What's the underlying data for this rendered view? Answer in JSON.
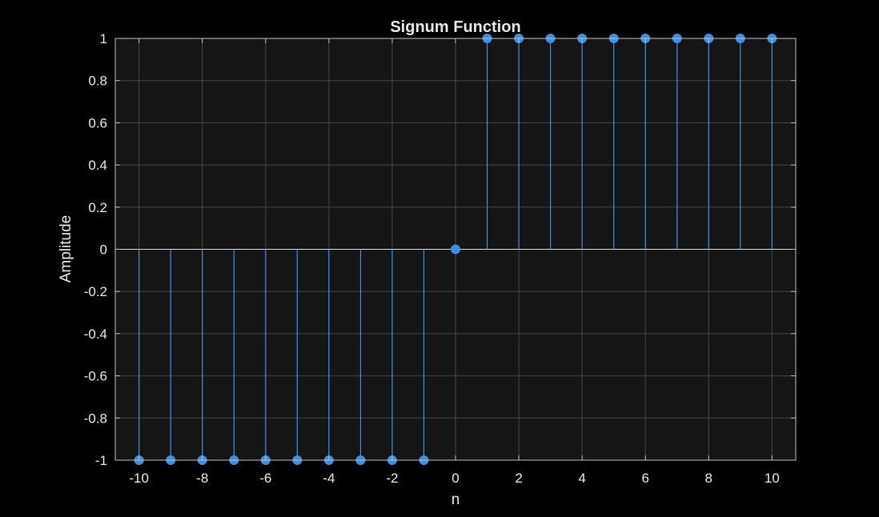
{
  "chart_data": {
    "type": "stem",
    "title": "Signum Function",
    "xlabel": "n",
    "ylabel": "Amplitude",
    "xlim": [
      -10.75,
      10.75
    ],
    "ylim": [
      -1,
      1
    ],
    "xticks": [
      "-10",
      "-8",
      "-6",
      "-4",
      "-2",
      "0",
      "2",
      "4",
      "6",
      "8",
      "10"
    ],
    "yticks": [
      "-1",
      "-0.8",
      "-0.6",
      "-0.4",
      "-0.2",
      "0",
      "0.2",
      "0.4",
      "0.6",
      "0.8",
      "1"
    ],
    "grid": true,
    "series": [
      {
        "x": [
          -10,
          -9,
          -8,
          -7,
          -6,
          -5,
          -4,
          -3,
          -2,
          -1,
          0,
          1,
          2,
          3,
          4,
          5,
          6,
          7,
          8,
          9,
          10
        ],
        "y": [
          -1,
          -1,
          -1,
          -1,
          -1,
          -1,
          -1,
          -1,
          -1,
          -1,
          0,
          1,
          1,
          1,
          1,
          1,
          1,
          1,
          1,
          1,
          1
        ]
      }
    ]
  },
  "colors": {
    "page_background": "#000000",
    "axes_background": "#151515",
    "grid": "#474747",
    "axes_line": "#bfbfbf",
    "text": "#e6e6e6",
    "series": "#3d8fe0"
  }
}
